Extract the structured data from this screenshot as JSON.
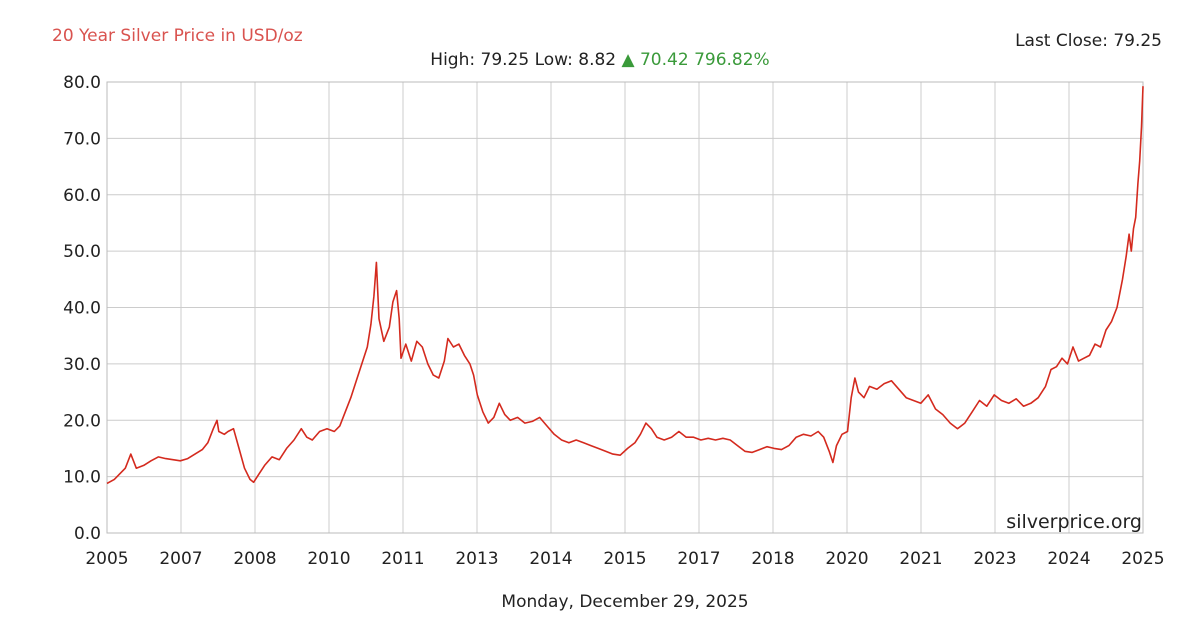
{
  "header": {
    "title": "20 Year Silver Price in USD/oz",
    "high_text": "High: 79.25",
    "low_text": "Low: 8.82",
    "change_text": "▲ 70.42 796.82%",
    "last_close_text": "Last Close: 79.25"
  },
  "footer": {
    "date": "Monday, December 29, 2025"
  },
  "watermark": "silverprice.org",
  "colors": {
    "line": "#d42a1e",
    "title": "#d9534f",
    "change": "#3a9a3a",
    "grid": "#cccccc"
  },
  "chart_data": {
    "type": "line",
    "title": "20 Year Silver Price in USD/oz",
    "xlabel": "",
    "ylabel": "",
    "ylim": [
      0,
      80
    ],
    "yticks": [
      "0.0",
      "10.0",
      "20.0",
      "30.0",
      "40.0",
      "50.0",
      "60.0",
      "70.0",
      "80.0"
    ],
    "xticks": [
      "2005",
      "2007",
      "2008",
      "2010",
      "2011",
      "2013",
      "2014",
      "2015",
      "2017",
      "2018",
      "2020",
      "2021",
      "2023",
      "2024",
      "2025"
    ],
    "grid": true,
    "series": [
      {
        "values": [
          [
            0.0,
            8.8
          ],
          [
            0.2,
            9.5
          ],
          [
            0.35,
            10.5
          ],
          [
            0.5,
            11.5
          ],
          [
            0.65,
            14.0
          ],
          [
            0.8,
            11.5
          ],
          [
            1.0,
            12.0
          ],
          [
            1.2,
            12.8
          ],
          [
            1.4,
            13.5
          ],
          [
            1.6,
            13.2
          ],
          [
            1.8,
            13.0
          ],
          [
            2.0,
            12.8
          ],
          [
            2.2,
            13.2
          ],
          [
            2.4,
            14.0
          ],
          [
            2.6,
            14.8
          ],
          [
            2.75,
            16.0
          ],
          [
            2.9,
            18.5
          ],
          [
            3.0,
            20.0
          ],
          [
            3.05,
            18.0
          ],
          [
            3.2,
            17.5
          ],
          [
            3.3,
            18.0
          ],
          [
            3.45,
            18.5
          ],
          [
            3.6,
            15.0
          ],
          [
            3.75,
            11.5
          ],
          [
            3.9,
            9.5
          ],
          [
            4.0,
            9.0
          ],
          [
            4.15,
            10.5
          ],
          [
            4.3,
            12.0
          ],
          [
            4.5,
            13.5
          ],
          [
            4.7,
            13.0
          ],
          [
            4.9,
            15.0
          ],
          [
            5.1,
            16.5
          ],
          [
            5.3,
            18.5
          ],
          [
            5.45,
            17.0
          ],
          [
            5.6,
            16.5
          ],
          [
            5.8,
            18.0
          ],
          [
            6.0,
            18.5
          ],
          [
            6.2,
            18.0
          ],
          [
            6.35,
            19.0
          ],
          [
            6.5,
            21.5
          ],
          [
            6.65,
            24.0
          ],
          [
            6.8,
            27.0
          ],
          [
            6.95,
            30.0
          ],
          [
            7.1,
            33.0
          ],
          [
            7.2,
            37.0
          ],
          [
            7.28,
            42.0
          ],
          [
            7.35,
            48.0
          ],
          [
            7.42,
            38.0
          ],
          [
            7.55,
            34.0
          ],
          [
            7.7,
            36.5
          ],
          [
            7.8,
            41.0
          ],
          [
            7.9,
            43.0
          ],
          [
            7.97,
            38.0
          ],
          [
            8.02,
            31.0
          ],
          [
            8.15,
            33.5
          ],
          [
            8.3,
            30.5
          ],
          [
            8.45,
            34.0
          ],
          [
            8.6,
            33.0
          ],
          [
            8.75,
            30.0
          ],
          [
            8.9,
            28.0
          ],
          [
            9.05,
            27.5
          ],
          [
            9.2,
            30.5
          ],
          [
            9.3,
            34.5
          ],
          [
            9.45,
            33.0
          ],
          [
            9.6,
            33.5
          ],
          [
            9.75,
            31.5
          ],
          [
            9.9,
            30.0
          ],
          [
            10.0,
            28.0
          ],
          [
            10.1,
            24.5
          ],
          [
            10.25,
            21.5
          ],
          [
            10.4,
            19.5
          ],
          [
            10.55,
            20.5
          ],
          [
            10.7,
            23.0
          ],
          [
            10.85,
            21.0
          ],
          [
            11.0,
            20.0
          ],
          [
            11.2,
            20.5
          ],
          [
            11.4,
            19.5
          ],
          [
            11.6,
            19.8
          ],
          [
            11.8,
            20.5
          ],
          [
            12.0,
            19.0
          ],
          [
            12.2,
            17.5
          ],
          [
            12.4,
            16.5
          ],
          [
            12.6,
            16.0
          ],
          [
            12.8,
            16.5
          ],
          [
            13.0,
            16.0
          ],
          [
            13.2,
            15.5
          ],
          [
            13.4,
            15.0
          ],
          [
            13.6,
            14.5
          ],
          [
            13.8,
            14.0
          ],
          [
            14.0,
            13.8
          ],
          [
            14.2,
            15.0
          ],
          [
            14.4,
            16.0
          ],
          [
            14.55,
            17.5
          ],
          [
            14.7,
            19.5
          ],
          [
            14.85,
            18.5
          ],
          [
            15.0,
            17.0
          ],
          [
            15.2,
            16.5
          ],
          [
            15.4,
            17.0
          ],
          [
            15.6,
            18.0
          ],
          [
            15.8,
            17.0
          ],
          [
            16.0,
            17.0
          ],
          [
            16.2,
            16.5
          ],
          [
            16.4,
            16.8
          ],
          [
            16.6,
            16.5
          ],
          [
            16.8,
            16.8
          ],
          [
            17.0,
            16.5
          ],
          [
            17.2,
            15.5
          ],
          [
            17.4,
            14.5
          ],
          [
            17.6,
            14.3
          ],
          [
            17.8,
            14.8
          ],
          [
            18.0,
            15.3
          ],
          [
            18.2,
            15.0
          ],
          [
            18.4,
            14.8
          ],
          [
            18.6,
            15.5
          ],
          [
            18.8,
            17.0
          ],
          [
            19.0,
            17.5
          ],
          [
            19.2,
            17.2
          ],
          [
            19.4,
            18.0
          ],
          [
            19.55,
            17.0
          ],
          [
            19.7,
            14.5
          ],
          [
            19.8,
            12.5
          ],
          [
            19.9,
            15.5
          ],
          [
            20.05,
            17.5
          ],
          [
            20.2,
            18.0
          ],
          [
            20.3,
            24.0
          ],
          [
            20.4,
            27.5
          ],
          [
            20.5,
            25.0
          ],
          [
            20.65,
            24.0
          ],
          [
            20.8,
            26.0
          ],
          [
            21.0,
            25.5
          ],
          [
            21.2,
            26.5
          ],
          [
            21.4,
            27.0
          ],
          [
            21.6,
            25.5
          ],
          [
            21.8,
            24.0
          ],
          [
            22.0,
            23.5
          ],
          [
            22.2,
            23.0
          ],
          [
            22.4,
            24.5
          ],
          [
            22.6,
            22.0
          ],
          [
            22.8,
            21.0
          ],
          [
            23.0,
            19.5
          ],
          [
            23.2,
            18.5
          ],
          [
            23.4,
            19.5
          ],
          [
            23.6,
            21.5
          ],
          [
            23.8,
            23.5
          ],
          [
            24.0,
            22.5
          ],
          [
            24.2,
            24.5
          ],
          [
            24.4,
            23.5
          ],
          [
            24.6,
            23.0
          ],
          [
            24.8,
            23.8
          ],
          [
            25.0,
            22.5
          ],
          [
            25.2,
            23.0
          ],
          [
            25.4,
            24.0
          ],
          [
            25.6,
            26.0
          ],
          [
            25.75,
            29.0
          ],
          [
            25.9,
            29.5
          ],
          [
            26.05,
            31.0
          ],
          [
            26.2,
            30.0
          ],
          [
            26.35,
            33.0
          ],
          [
            26.5,
            30.5
          ],
          [
            26.65,
            31.0
          ],
          [
            26.8,
            31.5
          ],
          [
            26.95,
            33.5
          ],
          [
            27.1,
            33.0
          ],
          [
            27.25,
            36.0
          ],
          [
            27.4,
            37.5
          ],
          [
            27.55,
            40.0
          ],
          [
            27.7,
            45.0
          ],
          [
            27.8,
            49.0
          ],
          [
            27.88,
            53.0
          ],
          [
            27.94,
            50.0
          ],
          [
            28.0,
            54.0
          ],
          [
            28.06,
            56.0
          ],
          [
            28.12,
            62.0
          ],
          [
            28.17,
            66.0
          ],
          [
            28.22,
            72.0
          ],
          [
            28.26,
            79.25
          ]
        ]
      }
    ]
  }
}
